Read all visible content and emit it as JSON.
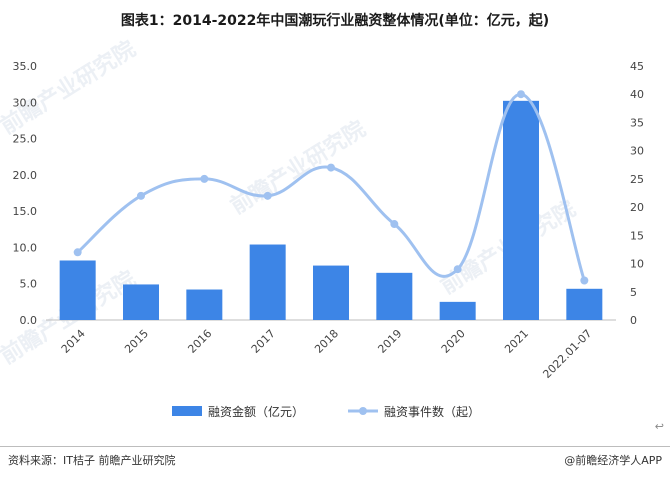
{
  "header": {
    "title": "图表1：2014-2022年中国潮玩行业融资整体情况(单位：亿元，起)"
  },
  "footer": {
    "source": "资料来源：IT桔子 前瞻产业研究院",
    "credit": "@前瞻经济学人APP",
    "back_glyph": "↩"
  },
  "watermark": {
    "text": "前瞻产业研究院"
  },
  "chart_data": {
    "type": "bar",
    "categories": [
      "2014",
      "2015",
      "2016",
      "2017",
      "2018",
      "2019",
      "2020",
      "2021",
      "2022.01-07"
    ],
    "series": [
      {
        "name": "融资金额（亿元）",
        "type": "bar",
        "axis": "left",
        "color": "#3d85e6",
        "values": [
          8.2,
          4.9,
          4.2,
          10.4,
          7.5,
          6.5,
          2.5,
          30.2,
          4.3
        ]
      },
      {
        "name": "融资事件数（起）",
        "type": "line",
        "axis": "right",
        "color": "#9fc1f0",
        "values": [
          12,
          22,
          25,
          22,
          27,
          17,
          9,
          40,
          7
        ]
      }
    ],
    "y_left": {
      "ylim": [
        0,
        35
      ],
      "ticks": [
        "0.0",
        "5.0",
        "10.0",
        "15.0",
        "20.0",
        "25.0",
        "30.0",
        "35.0"
      ]
    },
    "y_right": {
      "ylim": [
        0,
        45
      ],
      "ticks": [
        "0",
        "5",
        "10",
        "15",
        "20",
        "25",
        "30",
        "35",
        "40",
        "45"
      ]
    },
    "grid": false,
    "legend_position": "bottom-center"
  }
}
